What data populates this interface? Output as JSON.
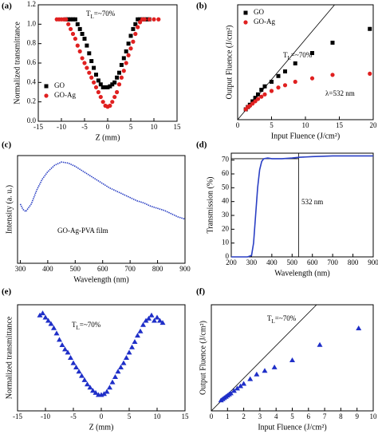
{
  "chart_data": [
    {
      "type": "scatter",
      "title": "(a)",
      "x_label": "Z (mm)",
      "y_label": "Normalized transmittance",
      "xlim": [
        -15,
        15
      ],
      "xticks": [
        -15,
        -10,
        -5,
        0,
        5,
        10,
        15
      ],
      "ylim": [
        0,
        1.2
      ],
      "yticks": [
        {
          "value": 0,
          "label": "0.0"
        },
        {
          "value": 0.2,
          "label": "0.2"
        },
        {
          "value": 0.4,
          "label": "0.4"
        },
        {
          "value": 0.6,
          "label": "0.6"
        },
        {
          "value": 0.8,
          "label": "0.8"
        },
        {
          "value": 1.0,
          "label": "1.0"
        },
        {
          "value": 1.2,
          "label": "1.2"
        }
      ],
      "legend": "lower left",
      "annotations": [
        {
          "text": "T",
          "sub": "L",
          "tail": "=~70%"
        }
      ],
      "series": [
        {
          "name": "GO",
          "color": "#000000",
          "marker": "square",
          "x": [
            -9,
            -8.5,
            -8,
            -7.5,
            -7,
            -6.5,
            -6,
            -5.5,
            -5,
            -4.5,
            -4,
            -3.5,
            -3,
            -2.5,
            -2,
            -1.5,
            -1,
            -0.5,
            0,
            0.5,
            1,
            1.5,
            2,
            2.5,
            3,
            3.5,
            4,
            4.5,
            5,
            5.5,
            6,
            6.5,
            7,
            7.5,
            8,
            8.5,
            9
          ],
          "values": [
            1.05,
            1.05,
            1.05,
            1.05,
            1.05,
            1.0,
            0.95,
            0.9,
            0.85,
            0.78,
            0.7,
            0.62,
            0.55,
            0.48,
            0.42,
            0.38,
            0.35,
            0.35,
            0.35,
            0.36,
            0.38,
            0.4,
            0.45,
            0.5,
            0.58,
            0.65,
            0.72,
            0.8,
            0.88,
            0.95,
            1.0,
            1.05,
            1.05,
            1.05,
            1.05,
            1.05,
            1.05
          ]
        },
        {
          "name": "GO-Ag",
          "color": "#e02020",
          "marker": "circle",
          "x": [
            -11,
            -10.5,
            -10,
            -9.5,
            -9,
            -8.5,
            -8,
            -7.5,
            -7,
            -6.5,
            -6,
            -5.5,
            -5,
            -4.5,
            -4,
            -3.5,
            -3,
            -2.5,
            -2,
            -1.5,
            -1,
            -0.5,
            0,
            0.5,
            1,
            1.5,
            2,
            2.5,
            3,
            3.5,
            4,
            4.5,
            5,
            5.5,
            6,
            6.5,
            7,
            7.5,
            8,
            9,
            10,
            11
          ],
          "values": [
            1.05,
            1.05,
            1.05,
            1.05,
            1.05,
            1.0,
            0.95,
            0.9,
            0.85,
            0.78,
            0.72,
            0.65,
            0.6,
            0.55,
            0.5,
            0.45,
            0.4,
            0.35,
            0.3,
            0.25,
            0.2,
            0.16,
            0.15,
            0.16,
            0.2,
            0.25,
            0.3,
            0.38,
            0.45,
            0.52,
            0.6,
            0.68,
            0.75,
            0.82,
            0.9,
            0.97,
            1.02,
            1.05,
            1.05,
            1.05,
            1.05,
            1.05
          ]
        }
      ]
    },
    {
      "type": "scatter",
      "title": "(b)",
      "x_label": "Input Fluence (J/cm²)",
      "y_label": "Output Fluence (J/cm²)",
      "xlim": [
        0,
        20
      ],
      "xticks": [
        0,
        5,
        10,
        15,
        20
      ],
      "ylim": [
        0,
        10
      ],
      "legend": "upper left",
      "annotations": [
        {
          "text": "T",
          "sub": "L",
          "tail": "=~70%"
        },
        {
          "text": "λ=532 nm"
        }
      ],
      "reference_lines": [
        {
          "x": [
            0,
            14.3
          ],
          "y": [
            0,
            10
          ]
        }
      ],
      "series": [
        {
          "name": "GO",
          "color": "#000000",
          "marker": "square",
          "x": [
            1.2,
            1.5,
            1.8,
            2.2,
            2.6,
            3,
            3.5,
            4,
            5,
            6,
            7,
            8.5,
            11,
            14,
            19.5
          ],
          "values": [
            0.9,
            1.1,
            1.3,
            1.6,
            1.9,
            2.2,
            2.6,
            2.9,
            3.3,
            3.8,
            4.2,
            4.9,
            5.8,
            6.7,
            7.9
          ]
        },
        {
          "name": "GO-Ag",
          "color": "#e02020",
          "marker": "circle",
          "x": [
            1.2,
            1.5,
            1.8,
            2.2,
            2.6,
            3,
            3.5,
            4,
            5,
            6,
            7,
            8.5,
            11,
            14,
            19.5
          ],
          "values": [
            0.9,
            1.1,
            1.2,
            1.4,
            1.6,
            1.8,
            2.0,
            2.2,
            2.5,
            2.8,
            3.0,
            3.3,
            3.6,
            3.9,
            4.0
          ]
        }
      ]
    },
    {
      "type": "line",
      "title": "(c)",
      "x_label": "Wavelength (nm)",
      "y_label": "Intensity (a. u.)",
      "xlim": [
        290,
        900
      ],
      "xticks": [
        300,
        400,
        500,
        600,
        700,
        800,
        900
      ],
      "ylim": [
        0,
        1
      ],
      "annotations": [
        {
          "text": "GO-Ag-PVA film"
        }
      ],
      "series": [
        {
          "color": "#2a3fc4",
          "x": [
            300,
            310,
            320,
            340,
            360,
            380,
            400,
            425,
            450,
            475,
            500,
            525,
            550,
            575,
            600,
            625,
            650,
            675,
            700,
            725,
            750,
            775,
            800,
            825,
            850,
            875,
            900
          ],
          "values": [
            0.55,
            0.5,
            0.48,
            0.55,
            0.68,
            0.78,
            0.85,
            0.91,
            0.94,
            0.93,
            0.9,
            0.86,
            0.82,
            0.78,
            0.74,
            0.7,
            0.67,
            0.64,
            0.61,
            0.58,
            0.56,
            0.53,
            0.51,
            0.49,
            0.46,
            0.43,
            0.41
          ]
        }
      ]
    },
    {
      "type": "line",
      "title": "(d)",
      "x_label": "Wavelength (nm)",
      "y_label": "Transmission (%)",
      "xlim": [
        200,
        900
      ],
      "xticks": [
        200,
        300,
        400,
        500,
        600,
        700,
        800,
        900
      ],
      "ylim": [
        0,
        75
      ],
      "yticks": [
        0,
        10,
        20,
        30,
        40,
        50,
        60,
        70
      ],
      "annotations": [
        {
          "text": "532 nm"
        }
      ],
      "reference_lines": [
        {
          "x": [
            200,
            532
          ],
          "y": [
            71,
            71
          ]
        },
        {
          "x": [
            532,
            532
          ],
          "y": [
            0,
            75
          ]
        }
      ],
      "series": [
        {
          "color": "#2a3fc4",
          "x": [
            200,
            250,
            280,
            300,
            310,
            320,
            330,
            340,
            350,
            360,
            380,
            400,
            450,
            500,
            532,
            600,
            700,
            800,
            900
          ],
          "values": [
            0,
            0,
            0,
            1,
            10,
            30,
            50,
            63,
            69,
            71,
            71.5,
            71,
            71,
            71.5,
            72,
            72.5,
            73,
            73,
            73
          ]
        }
      ]
    },
    {
      "type": "scatter",
      "title": "(e)",
      "x_label": "Z (mm)",
      "y_label": "Normalized transmittance",
      "xlim": [
        -15,
        15
      ],
      "xticks": [
        -15,
        -10,
        -5,
        0,
        5,
        10,
        15
      ],
      "ylim": [
        0.15,
        1.15
      ],
      "annotations": [
        {
          "text": "T",
          "sub": "L",
          "tail": "=~70%"
        }
      ],
      "series": [
        {
          "color": "#1f2fc8",
          "marker": "triangle",
          "x": [
            -11,
            -10.5,
            -10,
            -9.5,
            -9,
            -8.5,
            -8,
            -7.5,
            -7,
            -6.5,
            -6,
            -5.5,
            -5,
            -4.5,
            -4,
            -3.5,
            -3,
            -2.5,
            -2,
            -1.5,
            -1,
            -0.5,
            0,
            0.5,
            1,
            1.5,
            2,
            2.5,
            3,
            3.5,
            4,
            4.5,
            5,
            5.5,
            6,
            6.5,
            7,
            7.5,
            8,
            8.5,
            9,
            9.5,
            10,
            10.5,
            11
          ],
          "values": [
            1.05,
            1.07,
            1.03,
            1.0,
            0.97,
            0.93,
            0.88,
            0.82,
            0.77,
            0.73,
            0.7,
            0.65,
            0.6,
            0.56,
            0.52,
            0.48,
            0.44,
            0.4,
            0.37,
            0.34,
            0.32,
            0.3,
            0.3,
            0.31,
            0.33,
            0.37,
            0.42,
            0.47,
            0.52,
            0.56,
            0.6,
            0.65,
            0.7,
            0.75,
            0.8,
            0.86,
            0.9,
            0.96,
            1.0,
            1.02,
            1.05,
            1.0,
            1.03,
            1.0,
            0.98
          ]
        }
      ]
    },
    {
      "type": "scatter",
      "title": "(f)",
      "x_label": "Input Fluence (J/cm²)",
      "y_label": "Output Fluence (J/cm²)",
      "xlim": [
        0,
        10
      ],
      "xticks": [
        0,
        1,
        2,
        3,
        4,
        5,
        6,
        7,
        8,
        9,
        10
      ],
      "ylim": [
        0,
        4.5
      ],
      "annotations": [
        {
          "text": "T",
          "sub": "L",
          "tail": "=~70%"
        }
      ],
      "reference_lines": [
        {
          "x": [
            0,
            6.5
          ],
          "y": [
            0,
            4.5
          ]
        }
      ],
      "series": [
        {
          "color": "#1f2fc8",
          "marker": "triangle",
          "x": [
            0.6,
            0.7,
            0.8,
            0.9,
            1,
            1.1,
            1.2,
            1.4,
            1.6,
            1.8,
            2,
            2.4,
            2.8,
            3.3,
            3.9,
            5,
            6.7,
            9.1
          ],
          "values": [
            0.45,
            0.5,
            0.55,
            0.6,
            0.65,
            0.7,
            0.75,
            0.85,
            0.95,
            1.05,
            1.15,
            1.35,
            1.55,
            1.7,
            1.85,
            2.15,
            2.8,
            3.5
          ]
        }
      ]
    }
  ]
}
